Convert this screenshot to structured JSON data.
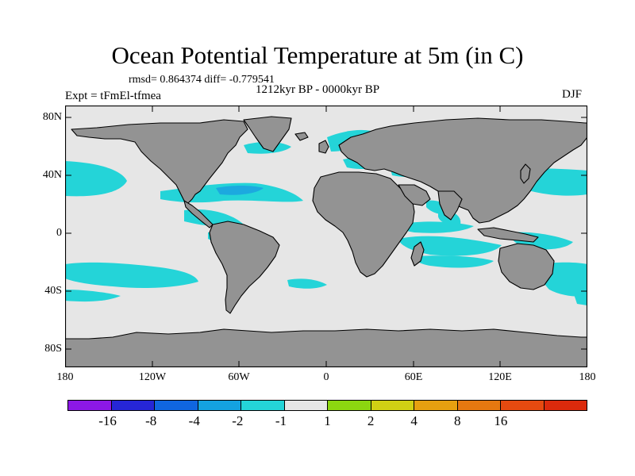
{
  "title": "Ocean Potential Temperature at 5m (in C)",
  "stats": "rmsd= 0.864374 diff= -0.779541",
  "experiment": "Expt = tFmEl-tfmea",
  "period": "1212kyr BP - 0000kyr BP",
  "season": "DJF",
  "lat_labels": [
    "80N",
    "40N",
    "0",
    "40S",
    "80S"
  ],
  "lon_labels": [
    "180",
    "120W",
    "60W",
    "0",
    "60E",
    "120E",
    "180"
  ],
  "colors": {
    "land": "#939393",
    "neutral": "#e6e6e6",
    "anomaly_minus1_minus2": "#24d4d8",
    "anomaly_minus2_minus4": "#1ca9df"
  },
  "colorbar": {
    "colors": [
      "#8c18e6",
      "#2626d6",
      "#1066e0",
      "#14a2e0",
      "#24d4d8",
      "#e6e6e6",
      "#8cd610",
      "#d0d014",
      "#e6a010",
      "#e67810",
      "#e64a10",
      "#dc2a0c"
    ],
    "labels": [
      "-16",
      "-8",
      "-4",
      "-2",
      "-1",
      "1",
      "2",
      "4",
      "8",
      "16"
    ]
  }
}
